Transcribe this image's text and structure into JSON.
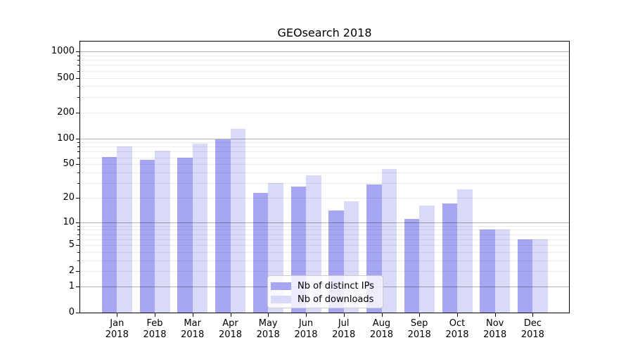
{
  "chart_data": {
    "type": "bar",
    "title": "GEOsearch 2018",
    "categories": [
      [
        "Jan",
        "2018"
      ],
      [
        "Feb",
        "2018"
      ],
      [
        "Mar",
        "2018"
      ],
      [
        "Apr",
        "2018"
      ],
      [
        "May",
        "2018"
      ],
      [
        "Jun",
        "2018"
      ],
      [
        "Jul",
        "2018"
      ],
      [
        "Aug",
        "2018"
      ],
      [
        "Sep",
        "2018"
      ],
      [
        "Oct",
        "2018"
      ],
      [
        "Nov",
        "2018"
      ],
      [
        "Dec",
        "2018"
      ]
    ],
    "series": [
      {
        "name": "Nb of distinct IPs",
        "color": "#a6a6f2",
        "values": [
          61,
          56,
          59,
          97,
          23,
          27,
          14,
          29,
          11,
          17,
          8,
          6
        ]
      },
      {
        "name": "Nb of downloads",
        "color": "#d9d9f8",
        "values": [
          80,
          72,
          87,
          130,
          30,
          37,
          18,
          44,
          16,
          25,
          8,
          6
        ]
      }
    ],
    "xlabel": "",
    "ylabel": "",
    "yscale": "log10(value+1)",
    "ytick_labels": [
      0,
      1,
      2,
      5,
      10,
      20,
      50,
      100,
      200,
      500,
      1000
    ],
    "ylim": [
      0,
      1400
    ],
    "grid": "horizontal major and minor, drawn over bars",
    "legend_position": "lower center",
    "colors": {
      "major_grid": "#b0b0b0",
      "minor_grid": "#e9e9e9",
      "legend_border": "#cccccc",
      "axes_edge": "#000000"
    }
  }
}
